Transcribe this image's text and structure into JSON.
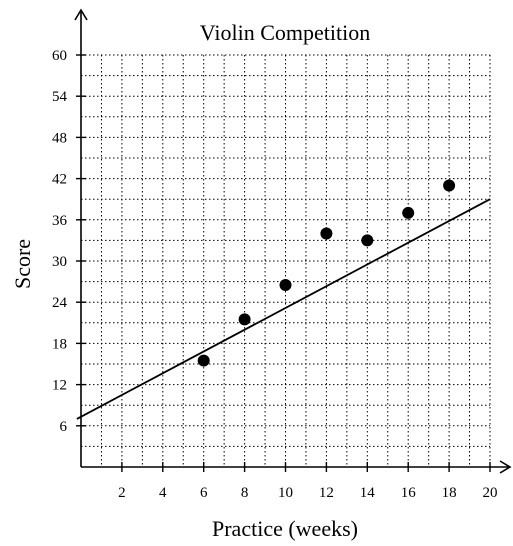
{
  "chart_data": {
    "type": "scatter",
    "title": "Violin Competition",
    "xlabel": "Practice (weeks)",
    "ylabel": "Score",
    "xlim": [
      0,
      20
    ],
    "ylim": [
      0,
      60
    ],
    "x_ticks": [
      2,
      4,
      6,
      8,
      10,
      12,
      14,
      16,
      18,
      20
    ],
    "y_ticks": [
      6,
      12,
      18,
      24,
      30,
      36,
      42,
      48,
      54,
      60
    ],
    "grid": true,
    "points": [
      {
        "x": 6,
        "y": 15.5
      },
      {
        "x": 8,
        "y": 21.5
      },
      {
        "x": 10,
        "y": 26.5
      },
      {
        "x": 12,
        "y": 34
      },
      {
        "x": 14,
        "y": 33
      },
      {
        "x": 16,
        "y": 37
      },
      {
        "x": 18,
        "y": 41
      }
    ],
    "trend_line": {
      "x1": -0.2,
      "y1": 7,
      "x2": 20,
      "y2": 39
    }
  },
  "colors": {
    "ink": "#000000",
    "background": "#ffffff"
  }
}
